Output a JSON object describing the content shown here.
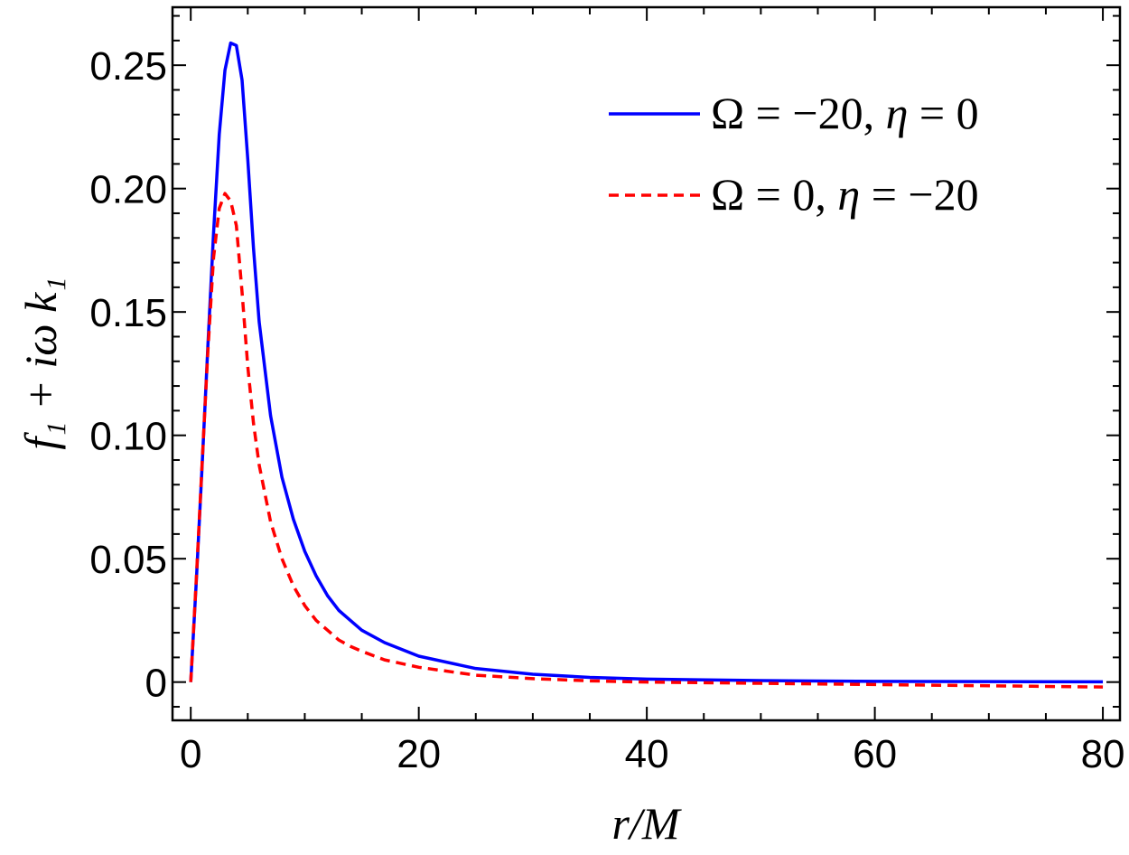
{
  "chart_data": {
    "type": "line",
    "xlabel": "r/M",
    "ylabel": "f₁ + iω k₁",
    "xlim": [
      -1.6,
      81.5
    ],
    "ylim": [
      -0.0155,
      0.2735
    ],
    "x_ticks": [
      {
        "value": 0,
        "label": "0"
      },
      {
        "value": 20,
        "label": "20"
      },
      {
        "value": 40,
        "label": "40"
      },
      {
        "value": 60,
        "label": "60"
      },
      {
        "value": 80,
        "label": "80"
      }
    ],
    "y_ticks": [
      {
        "value": 0,
        "label": "0"
      },
      {
        "value": 0.05,
        "label": "0.05"
      },
      {
        "value": 0.1,
        "label": "0.10"
      },
      {
        "value": 0.15,
        "label": "0.15"
      },
      {
        "value": 0.2,
        "label": "0.20"
      },
      {
        "value": 0.25,
        "label": "0.25"
      }
    ],
    "x_minor_step": 5,
    "y_minor_step": 0.01,
    "grid": false,
    "legend_position": "top-right",
    "series": [
      {
        "name": "Ω = −20, η = 0",
        "legend": {
          "sym1": "Ω",
          "mid": " = −20, ",
          "sym2": "η",
          "end": " = 0"
        },
        "color": "#0000ff",
        "dash": "solid",
        "x": [
          0,
          0.5,
          1,
          1.5,
          2,
          2.5,
          3,
          3.5,
          4,
          4.5,
          5,
          5.5,
          6,
          7,
          8,
          9,
          10,
          11,
          12,
          13,
          14,
          15,
          17,
          20,
          25,
          30,
          35,
          40,
          50,
          60,
          70,
          80
        ],
        "y": [
          0,
          0.042,
          0.088,
          0.136,
          0.182,
          0.222,
          0.248,
          0.259,
          0.258,
          0.244,
          0.212,
          0.176,
          0.146,
          0.108,
          0.083,
          0.066,
          0.053,
          0.043,
          0.035,
          0.029,
          0.025,
          0.021,
          0.016,
          0.0105,
          0.0055,
          0.0032,
          0.0019,
          0.0012,
          0.0006,
          0.0003,
          0.0002,
          0.0001
        ]
      },
      {
        "name": "Ω = 0, η = −20",
        "legend": {
          "sym1": "Ω",
          "mid": " = 0, ",
          "sym2": "η",
          "end": " = −20"
        },
        "color": "#ff0000",
        "dash": "dashed",
        "x": [
          0,
          0.5,
          1,
          1.5,
          2,
          2.5,
          3,
          3.5,
          4,
          4.5,
          5,
          5.5,
          6,
          7,
          8,
          9,
          10,
          11,
          12,
          13,
          14,
          15,
          17,
          20,
          25,
          30,
          35,
          40,
          50,
          60,
          70,
          80
        ],
        "y": [
          0,
          0.043,
          0.089,
          0.134,
          0.172,
          0.192,
          0.198,
          0.195,
          0.185,
          0.158,
          0.128,
          0.105,
          0.088,
          0.065,
          0.05,
          0.039,
          0.031,
          0.025,
          0.021,
          0.017,
          0.0145,
          0.0125,
          0.009,
          0.006,
          0.0028,
          0.0014,
          0.0005,
          0.0,
          -0.0005,
          -0.001,
          -0.0015,
          -0.002
        ]
      }
    ]
  }
}
